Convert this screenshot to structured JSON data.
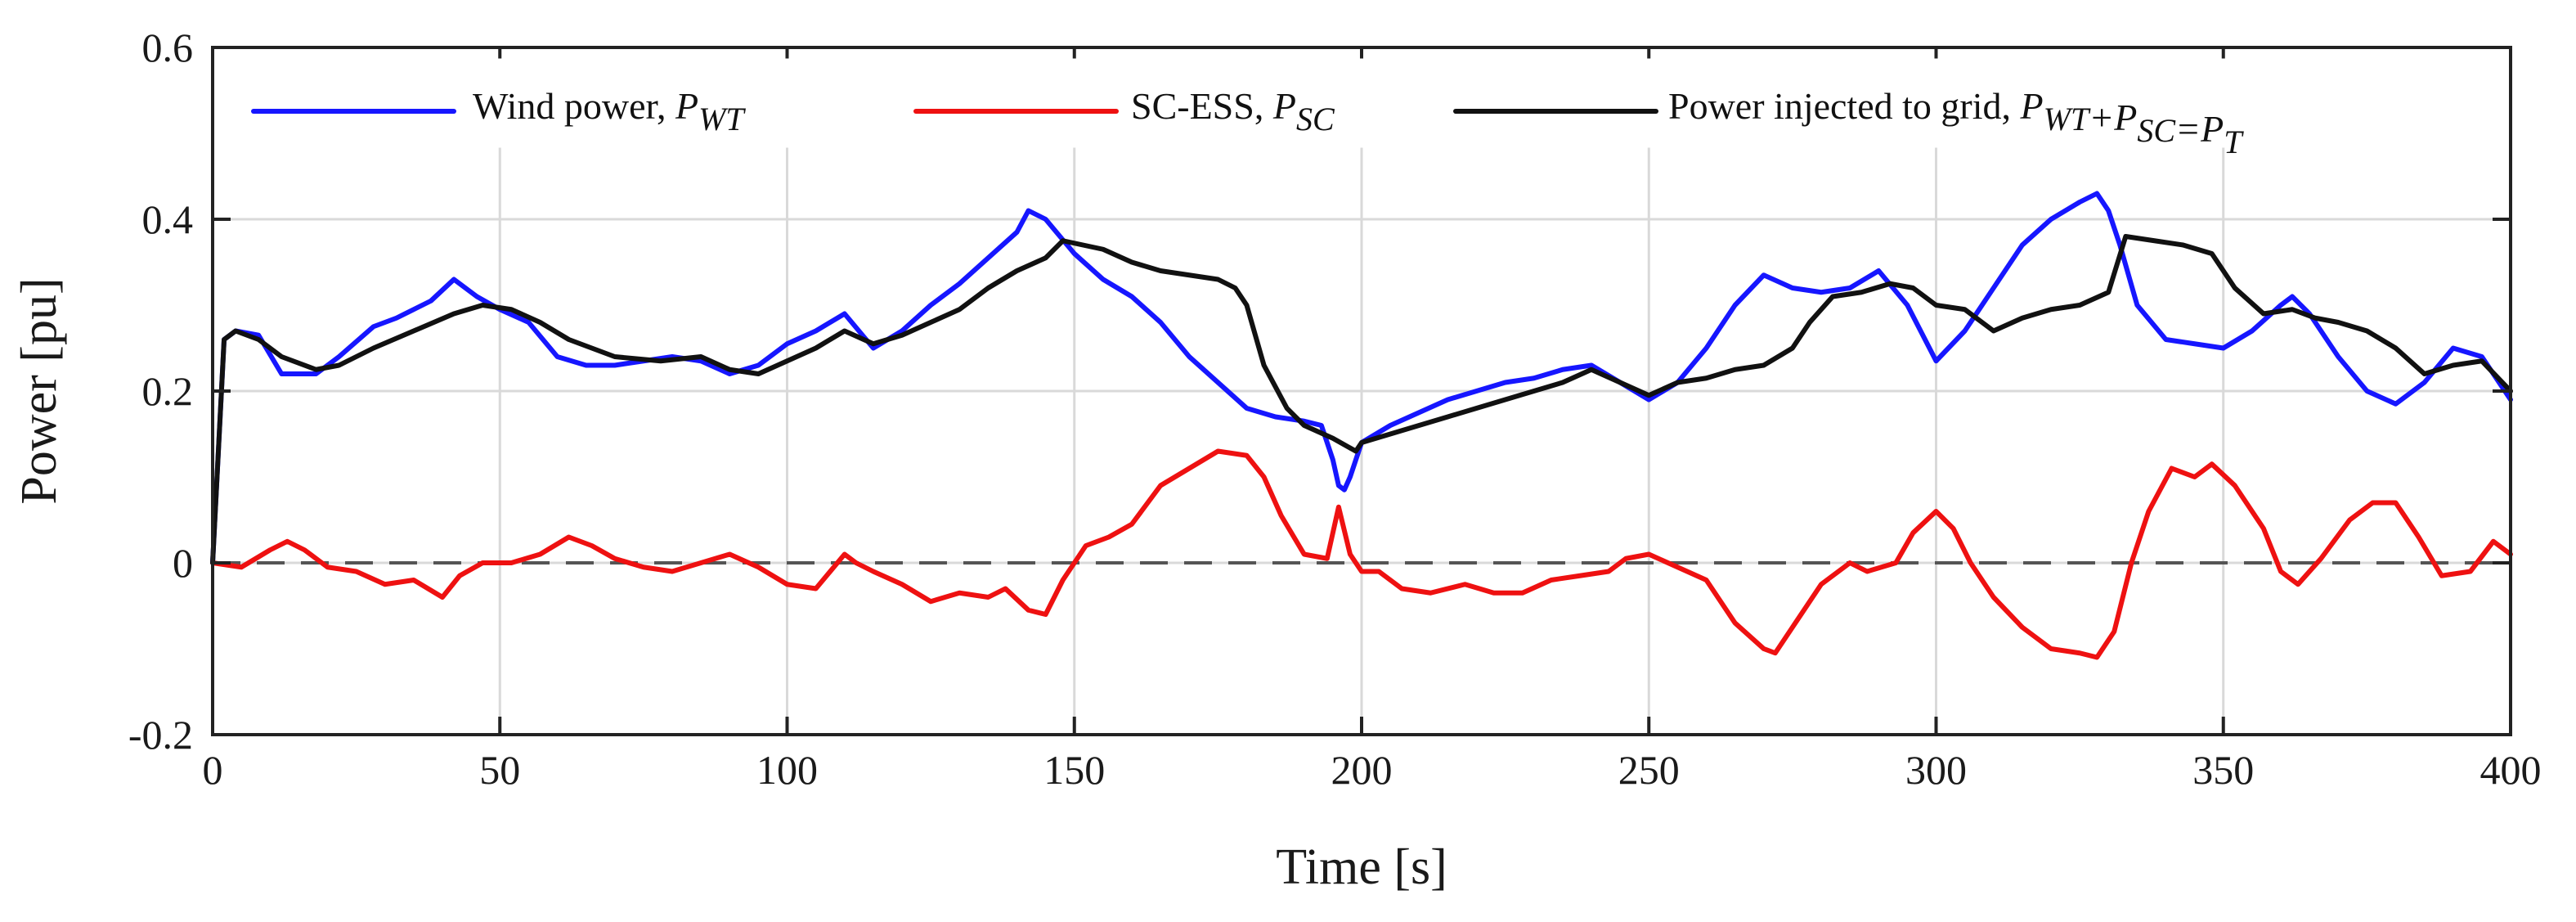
{
  "chart_data": {
    "type": "line",
    "title": "",
    "xlabel": "Time [s]",
    "ylabel": "Power [pu]",
    "xlim": [
      0,
      400
    ],
    "ylim": [
      -0.2,
      0.6
    ],
    "xticks": [
      0,
      50,
      100,
      150,
      200,
      250,
      300,
      350,
      400
    ],
    "yticks": [
      -0.2,
      0,
      0.2,
      0.4,
      0.6
    ],
    "xtick_labels": [
      "0",
      "50",
      "100",
      "150",
      "200",
      "250",
      "300",
      "350",
      "400"
    ],
    "ytick_labels": [
      "-0.2",
      "0",
      "0.2",
      "0.4",
      "0.6"
    ],
    "grid": true,
    "legend_position": "top",
    "reference_line": {
      "y": 0,
      "style": "dashed",
      "color": "#555555"
    },
    "series": [
      {
        "name": "Wind power",
        "color": "#1616ff",
        "legend": {
          "prefix": "Wind power,  ",
          "math": [
            {
              "text": "P",
              "sub": "WT"
            }
          ]
        },
        "x": [
          0,
          2,
          4,
          8,
          12,
          18,
          22,
          28,
          32,
          38,
          42,
          46,
          50,
          55,
          60,
          65,
          70,
          75,
          80,
          85,
          90,
          95,
          100,
          105,
          110,
          115,
          120,
          125,
          130,
          135,
          140,
          142,
          145,
          150,
          155,
          160,
          165,
          170,
          175,
          180,
          185,
          190,
          193,
          195,
          196,
          197,
          198,
          199,
          200,
          205,
          210,
          215,
          220,
          225,
          230,
          235,
          240,
          245,
          250,
          255,
          260,
          265,
          270,
          275,
          280,
          285,
          290,
          295,
          300,
          305,
          310,
          315,
          320,
          325,
          328,
          330,
          332,
          335,
          340,
          345,
          350,
          355,
          360,
          362,
          365,
          370,
          375,
          380,
          385,
          390,
          395,
          400
        ],
        "values": [
          0,
          0.26,
          0.27,
          0.265,
          0.22,
          0.22,
          0.24,
          0.275,
          0.285,
          0.305,
          0.33,
          0.31,
          0.295,
          0.28,
          0.24,
          0.23,
          0.23,
          0.235,
          0.24,
          0.235,
          0.22,
          0.23,
          0.255,
          0.27,
          0.29,
          0.25,
          0.27,
          0.3,
          0.325,
          0.355,
          0.385,
          0.41,
          0.4,
          0.36,
          0.33,
          0.31,
          0.28,
          0.24,
          0.21,
          0.18,
          0.17,
          0.165,
          0.16,
          0.12,
          0.09,
          0.085,
          0.1,
          0.12,
          0.14,
          0.16,
          0.175,
          0.19,
          0.2,
          0.21,
          0.215,
          0.225,
          0.23,
          0.21,
          0.19,
          0.21,
          0.25,
          0.3,
          0.335,
          0.32,
          0.315,
          0.32,
          0.34,
          0.3,
          0.235,
          0.27,
          0.32,
          0.37,
          0.4,
          0.42,
          0.43,
          0.41,
          0.37,
          0.3,
          0.26,
          0.255,
          0.25,
          0.27,
          0.3,
          0.31,
          0.29,
          0.24,
          0.2,
          0.185,
          0.21,
          0.25,
          0.24,
          0.19
        ]
      },
      {
        "name": "SC-ESS",
        "color": "#ee1111",
        "legend": {
          "prefix": "SC-ESS,  ",
          "math": [
            {
              "text": "P",
              "sub": "SC"
            }
          ]
        },
        "x": [
          0,
          5,
          10,
          13,
          16,
          20,
          25,
          30,
          35,
          40,
          43,
          47,
          52,
          57,
          62,
          66,
          70,
          75,
          80,
          85,
          90,
          95,
          100,
          105,
          110,
          112,
          115,
          120,
          125,
          130,
          135,
          138,
          142,
          145,
          148,
          152,
          156,
          160,
          165,
          170,
          175,
          180,
          183,
          186,
          190,
          194,
          196,
          198,
          200,
          203,
          207,
          212,
          218,
          223,
          228,
          233,
          238,
          243,
          246,
          250,
          255,
          260,
          265,
          270,
          272,
          275,
          280,
          285,
          288,
          293,
          296,
          300,
          303,
          306,
          310,
          315,
          320,
          325,
          328,
          331,
          334,
          337,
          341,
          345,
          348,
          352,
          357,
          360,
          363,
          367,
          372,
          376,
          380,
          384,
          388,
          393,
          397,
          400
        ],
        "values": [
          0,
          -0.005,
          0.015,
          0.025,
          0.015,
          -0.005,
          -0.01,
          -0.025,
          -0.02,
          -0.04,
          -0.015,
          0.0,
          0.0,
          0.01,
          0.03,
          0.02,
          0.005,
          -0.005,
          -0.01,
          0.0,
          0.01,
          -0.005,
          -0.025,
          -0.03,
          0.01,
          0.0,
          -0.01,
          -0.025,
          -0.045,
          -0.035,
          -0.04,
          -0.03,
          -0.055,
          -0.06,
          -0.02,
          0.02,
          0.03,
          0.045,
          0.09,
          0.11,
          0.13,
          0.125,
          0.1,
          0.055,
          0.01,
          0.005,
          0.065,
          0.01,
          -0.01,
          -0.01,
          -0.03,
          -0.035,
          -0.025,
          -0.035,
          -0.035,
          -0.02,
          -0.015,
          -0.01,
          0.005,
          0.01,
          -0.005,
          -0.02,
          -0.07,
          -0.1,
          -0.105,
          -0.075,
          -0.025,
          0.0,
          -0.01,
          0.0,
          0.035,
          0.06,
          0.04,
          0.0,
          -0.04,
          -0.075,
          -0.1,
          -0.105,
          -0.11,
          -0.08,
          0.0,
          0.06,
          0.11,
          0.1,
          0.115,
          0.09,
          0.04,
          -0.01,
          -0.025,
          0.005,
          0.05,
          0.07,
          0.07,
          0.03,
          -0.015,
          -0.01,
          0.025,
          0.01
        ]
      },
      {
        "name": "Power injected to grid",
        "color": "#111111",
        "legend": {
          "prefix": "Power injected to grid,  ",
          "math": [
            {
              "text": "P",
              "sub": "WT"
            },
            {
              "text": "+"
            },
            {
              "text": "P",
              "sub": "SC"
            },
            {
              "text": "="
            },
            {
              "text": "P",
              "sub": "T"
            }
          ]
        },
        "x": [
          0,
          2,
          4,
          8,
          12,
          18,
          22,
          28,
          35,
          42,
          47,
          52,
          57,
          62,
          70,
          78,
          85,
          90,
          95,
          100,
          105,
          110,
          115,
          120,
          125,
          130,
          135,
          140,
          145,
          148,
          155,
          160,
          165,
          170,
          175,
          178,
          180,
          183,
          187,
          190,
          195,
          199,
          200,
          205,
          210,
          215,
          220,
          225,
          230,
          235,
          240,
          245,
          250,
          255,
          260,
          265,
          270,
          275,
          278,
          282,
          287,
          292,
          296,
          300,
          305,
          310,
          315,
          320,
          325,
          330,
          333,
          338,
          343,
          348,
          352,
          357,
          362,
          366,
          370,
          375,
          380,
          385,
          390,
          395,
          400
        ],
        "values": [
          0,
          0.26,
          0.27,
          0.26,
          0.24,
          0.225,
          0.23,
          0.25,
          0.27,
          0.29,
          0.3,
          0.295,
          0.28,
          0.26,
          0.24,
          0.235,
          0.24,
          0.225,
          0.22,
          0.235,
          0.25,
          0.27,
          0.255,
          0.265,
          0.28,
          0.295,
          0.32,
          0.34,
          0.355,
          0.375,
          0.365,
          0.35,
          0.34,
          0.335,
          0.33,
          0.32,
          0.3,
          0.23,
          0.18,
          0.16,
          0.145,
          0.13,
          0.14,
          0.15,
          0.16,
          0.17,
          0.18,
          0.19,
          0.2,
          0.21,
          0.225,
          0.21,
          0.195,
          0.21,
          0.215,
          0.225,
          0.23,
          0.25,
          0.28,
          0.31,
          0.315,
          0.325,
          0.32,
          0.3,
          0.295,
          0.27,
          0.285,
          0.295,
          0.3,
          0.315,
          0.38,
          0.375,
          0.37,
          0.36,
          0.32,
          0.29,
          0.295,
          0.285,
          0.28,
          0.27,
          0.25,
          0.22,
          0.23,
          0.235,
          0.2
        ]
      }
    ]
  }
}
